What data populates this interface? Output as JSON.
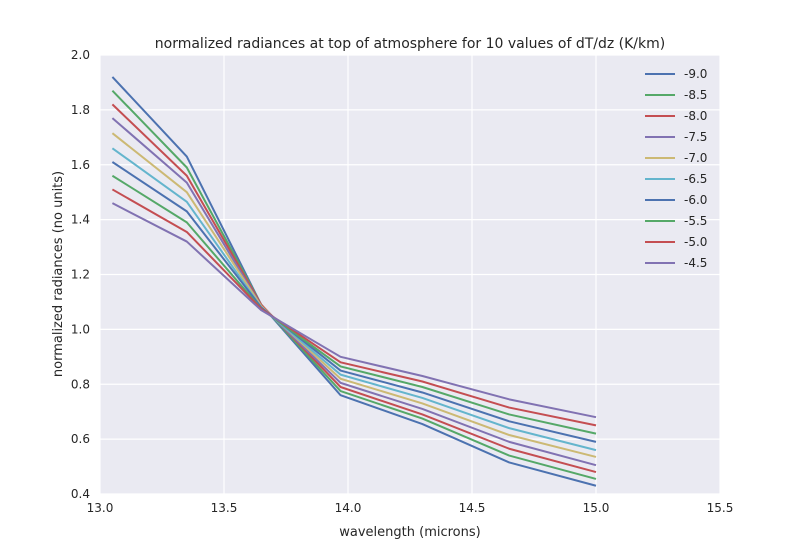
{
  "chart_data": {
    "type": "line",
    "title": "normalized radiances at top of atmosphere for 10 values of dT/dz (K/km)",
    "xlabel": "wavelength (microns)",
    "ylabel": "normalized radiances (no units)",
    "xlim": [
      13.0,
      15.5
    ],
    "ylim": [
      0.4,
      2.0
    ],
    "xticks": [
      "13.0",
      "13.5",
      "14.0",
      "14.5",
      "15.0",
      "15.5"
    ],
    "yticks": [
      "0.4",
      "0.6",
      "0.8",
      "1.0",
      "1.2",
      "1.4",
      "1.6",
      "1.8",
      "2.0"
    ],
    "xtick_values": [
      13.0,
      13.5,
      14.0,
      14.5,
      15.0,
      15.5
    ],
    "ytick_values": [
      0.4,
      0.6,
      0.8,
      1.0,
      1.2,
      1.4,
      1.6,
      1.8,
      2.0
    ],
    "grid": true,
    "legend_position": "top-right",
    "x": [
      13.05,
      13.35,
      13.65,
      13.97,
      14.3,
      14.65,
      15.0
    ],
    "series": [
      {
        "name": "-9.0",
        "color": "#4c72b0",
        "values": [
          1.92,
          1.63,
          1.09,
          0.76,
          0.655,
          0.515,
          0.43
        ]
      },
      {
        "name": "-8.5",
        "color": "#55a868",
        "values": [
          1.87,
          1.59,
          1.09,
          0.775,
          0.675,
          0.54,
          0.455
        ]
      },
      {
        "name": "-8.0",
        "color": "#c44e52",
        "values": [
          1.82,
          1.56,
          1.09,
          0.79,
          0.69,
          0.565,
          0.48
        ]
      },
      {
        "name": "-7.5",
        "color": "#8172b2",
        "values": [
          1.77,
          1.535,
          1.085,
          0.805,
          0.71,
          0.59,
          0.505
        ]
      },
      {
        "name": "-7.0",
        "color": "#ccb974",
        "values": [
          1.715,
          1.5,
          1.085,
          0.82,
          0.73,
          0.615,
          0.535
        ]
      },
      {
        "name": "-6.5",
        "color": "#64b5cd",
        "values": [
          1.66,
          1.465,
          1.08,
          0.835,
          0.75,
          0.64,
          0.56
        ]
      },
      {
        "name": "-6.0",
        "color": "#4c72b0",
        "values": [
          1.61,
          1.43,
          1.08,
          0.85,
          0.77,
          0.665,
          0.59
        ]
      },
      {
        "name": "-5.5",
        "color": "#55a868",
        "values": [
          1.56,
          1.39,
          1.075,
          0.865,
          0.79,
          0.69,
          0.62
        ]
      },
      {
        "name": "-5.0",
        "color": "#c44e52",
        "values": [
          1.51,
          1.355,
          1.075,
          0.88,
          0.81,
          0.715,
          0.65
        ]
      },
      {
        "name": "-4.5",
        "color": "#8172b2",
        "values": [
          1.46,
          1.32,
          1.07,
          0.9,
          0.83,
          0.745,
          0.68
        ]
      }
    ]
  }
}
